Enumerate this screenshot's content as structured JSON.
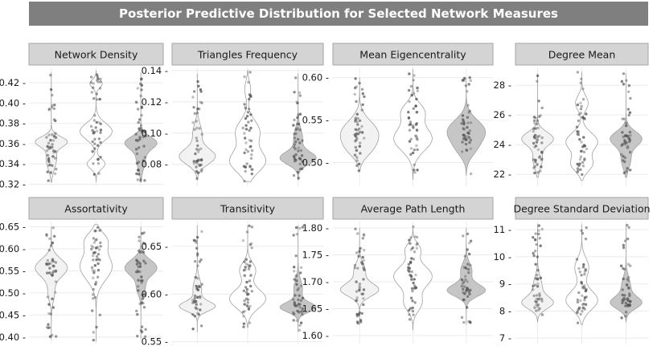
{
  "title": "Posterior Predictive Distribution for Selected Network Measures",
  "chart_data": [
    {
      "type": "violin",
      "title": "Network  Density",
      "ylim": [
        0.318,
        0.435
      ],
      "yticks": [
        0.32,
        0.34,
        0.36,
        0.38,
        0.4,
        0.42
      ],
      "ytick_labels": [
        "0.32 -",
        "0.34 -",
        "0.36 -",
        "0.38 -",
        "0.40 -",
        "0.42 -"
      ],
      "groups": [
        {
          "fill": "#f2f2f2",
          "modes": [
            [
              0.362,
              0.005,
              1.0
            ],
            [
              0.345,
              0.01,
              0.35
            ]
          ],
          "min": 0.322,
          "max": 0.43
        },
        {
          "fill": "#ffffff",
          "modes": [
            [
              0.372,
              0.008,
              0.9
            ],
            [
              0.34,
              0.005,
              0.5
            ],
            [
              0.419,
              0.004,
              0.35
            ]
          ],
          "min": 0.322,
          "max": 0.432
        },
        {
          "fill": "#c6c6c6",
          "modes": [
            [
              0.361,
              0.006,
              1.0
            ],
            [
              0.345,
              0.01,
              0.3
            ]
          ],
          "min": 0.322,
          "max": 0.43
        }
      ]
    },
    {
      "type": "violin",
      "title": "Triangles Frequency",
      "ylim": [
        0.066,
        0.142
      ],
      "yticks": [
        0.08,
        0.1,
        0.12,
        0.14
      ],
      "ytick_labels": [
        "0.08 -",
        "0.10 -",
        "0.12 -",
        "0.14 -"
      ],
      "groups": [
        {
          "fill": "#f2f2f2",
          "modes": [
            [
              0.085,
              0.005,
              1.0
            ],
            [
              0.1,
              0.006,
              0.25
            ]
          ],
          "min": 0.07,
          "max": 0.138
        },
        {
          "fill": "#ffffff",
          "modes": [
            [
              0.082,
              0.007,
              0.9
            ],
            [
              0.101,
              0.007,
              0.6
            ],
            [
              0.128,
              0.005,
              0.15
            ]
          ],
          "min": 0.069,
          "max": 0.14
        },
        {
          "fill": "#c6c6c6",
          "modes": [
            [
              0.084,
              0.004,
              1.0
            ],
            [
              0.097,
              0.006,
              0.25
            ]
          ],
          "min": 0.07,
          "max": 0.138
        }
      ]
    },
    {
      "type": "violin",
      "title": "Mean Eigencentrality",
      "ylim": [
        0.472,
        0.612
      ],
      "yticks": [
        0.5,
        0.55,
        0.6
      ],
      "ytick_labels": [
        "0.50 -",
        "0.55 -",
        "0.60 -"
      ],
      "groups": [
        {
          "fill": "#f2f2f2",
          "modes": [
            [
              0.535,
              0.014,
              1.0
            ],
            [
              0.515,
              0.01,
              0.4
            ]
          ],
          "min": 0.49,
          "max": 0.6
        },
        {
          "fill": "#ffffff",
          "modes": [
            [
              0.528,
              0.014,
              0.8
            ],
            [
              0.56,
              0.01,
              0.45
            ]
          ],
          "min": 0.48,
          "max": 0.61
        },
        {
          "fill": "#c6c6c6",
          "modes": [
            [
              0.537,
              0.013,
              1.0
            ],
            [
              0.515,
              0.01,
              0.35
            ]
          ],
          "min": 0.485,
          "max": 0.6
        }
      ]
    },
    {
      "type": "violin",
      "title": "Degree Mean",
      "ylim": [
        21.2,
        29.2
      ],
      "yticks": [
        22,
        24,
        26,
        28
      ],
      "ytick_labels": [
        "22 -",
        "24 -",
        "26 -",
        "28 -"
      ],
      "groups": [
        {
          "fill": "#f2f2f2",
          "modes": [
            [
              24.4,
              0.45,
              1.0
            ],
            [
              23.0,
              0.6,
              0.3
            ]
          ],
          "min": 21.8,
          "max": 28.8
        },
        {
          "fill": "#ffffff",
          "modes": [
            [
              24.2,
              0.6,
              0.75
            ],
            [
              22.7,
              0.5,
              0.5
            ],
            [
              26.8,
              0.5,
              0.3
            ]
          ],
          "min": 21.6,
          "max": 28.9
        },
        {
          "fill": "#c6c6c6",
          "modes": [
            [
              24.4,
              0.5,
              1.0
            ],
            [
              23.0,
              0.6,
              0.3
            ]
          ],
          "min": 21.8,
          "max": 28.8
        }
      ]
    },
    {
      "type": "violin",
      "title": "Assortativity",
      "ylim": [
        0.385,
        0.662
      ],
      "yticks": [
        0.4,
        0.45,
        0.5,
        0.55,
        0.6,
        0.65
      ],
      "ytick_labels": [
        "0.40 -",
        "0.45 -",
        "0.50 -",
        "0.55 -",
        "0.60 -",
        "0.65 -"
      ],
      "groups": [
        {
          "fill": "#f2f2f2",
          "modes": [
            [
              0.557,
              0.02,
              1.0
            ],
            [
              0.5,
              0.02,
              0.2
            ]
          ],
          "min": 0.395,
          "max": 0.65
        },
        {
          "fill": "#ffffff",
          "modes": [
            [
              0.56,
              0.03,
              0.75
            ],
            [
              0.62,
              0.018,
              0.45
            ]
          ],
          "min": 0.39,
          "max": 0.655
        },
        {
          "fill": "#c6c6c6",
          "modes": [
            [
              0.557,
              0.018,
              1.0
            ],
            [
              0.51,
              0.015,
              0.25
            ]
          ],
          "min": 0.395,
          "max": 0.65
        }
      ]
    },
    {
      "type": "violin",
      "title": "Transitivity",
      "ylim": [
        0.548,
        0.676
      ],
      "yticks": [
        0.55,
        0.6,
        0.65
      ],
      "ytick_labels": [
        "0.55 -",
        "0.60 -",
        "0.65 -"
      ],
      "groups": [
        {
          "fill": "#f2f2f2",
          "modes": [
            [
              0.587,
              0.005,
              1.0
            ],
            [
              0.605,
              0.01,
              0.25
            ]
          ],
          "min": 0.56,
          "max": 0.672
        },
        {
          "fill": "#ffffff",
          "modes": [
            [
              0.595,
              0.01,
              0.8
            ],
            [
              0.625,
              0.008,
              0.35
            ]
          ],
          "min": 0.565,
          "max": 0.672
        },
        {
          "fill": "#c6c6c6",
          "modes": [
            [
              0.586,
              0.005,
              1.0
            ],
            [
              0.605,
              0.01,
              0.25
            ]
          ],
          "min": 0.56,
          "max": 0.672
        }
      ]
    },
    {
      "type": "violin",
      "title": "Average Path Length",
      "ylim": [
        1.585,
        1.812
      ],
      "yticks": [
        1.6,
        1.65,
        1.7,
        1.75,
        1.8
      ],
      "ytick_labels": [
        "1.60 -",
        "1.65 -",
        "1.70 -",
        "1.75 -",
        "1.80 -"
      ],
      "groups": [
        {
          "fill": "#f2f2f2",
          "modes": [
            [
              1.685,
              0.012,
              1.0
            ],
            [
              1.72,
              0.015,
              0.3
            ]
          ],
          "min": 1.62,
          "max": 1.8
        },
        {
          "fill": "#ffffff",
          "modes": [
            [
              1.71,
              0.02,
              0.8
            ],
            [
              1.66,
              0.015,
              0.35
            ],
            [
              1.76,
              0.012,
              0.3
            ]
          ],
          "min": 1.61,
          "max": 1.805
        },
        {
          "fill": "#c6c6c6",
          "modes": [
            [
              1.684,
              0.011,
              1.0
            ],
            [
              1.72,
              0.015,
              0.3
            ]
          ],
          "min": 1.62,
          "max": 1.8
        }
      ]
    },
    {
      "type": "violin",
      "title": "Degree Standard Deviation",
      "ylim": [
        6.8,
        11.3
      ],
      "yticks": [
        7,
        8,
        9,
        10,
        11
      ],
      "ytick_labels": [
        "7 -",
        "8 -",
        "9 -",
        "10 -",
        "11 -"
      ],
      "groups": [
        {
          "fill": "#f2f2f2",
          "modes": [
            [
              8.3,
              0.22,
              1.0
            ],
            [
              8.9,
              0.35,
              0.3
            ]
          ],
          "min": 7.6,
          "max": 11.2
        },
        {
          "fill": "#ffffff",
          "modes": [
            [
              8.4,
              0.35,
              0.8
            ],
            [
              9.6,
              0.35,
              0.35
            ]
          ],
          "min": 7.5,
          "max": 11.2
        },
        {
          "fill": "#c6c6c6",
          "modes": [
            [
              8.3,
              0.22,
              1.0
            ],
            [
              8.9,
              0.35,
              0.3
            ]
          ],
          "min": 7.6,
          "max": 11.2
        }
      ]
    }
  ]
}
